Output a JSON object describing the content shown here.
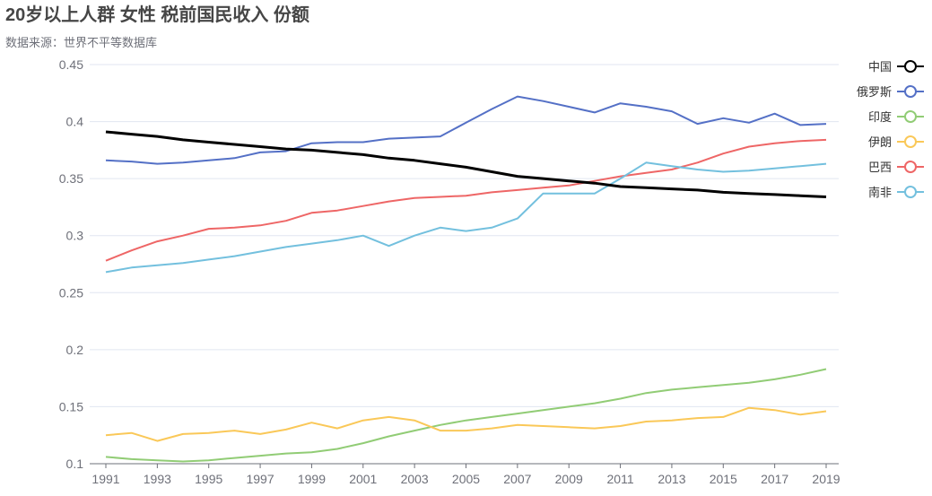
{
  "chart_data": {
    "type": "line",
    "title": "20岁以上人群 女性 税前国民收入 份额",
    "subtitle": "数据来源：世界不平等数据库",
    "xlabel": "",
    "ylabel": "",
    "ylim": [
      0.1,
      0.45
    ],
    "yticks": [
      "0.1",
      "0.15",
      "0.2",
      "0.25",
      "0.3",
      "0.35",
      "0.4",
      "0.45"
    ],
    "xlim": [
      1991,
      2019
    ],
    "xticks": [
      "1991",
      "1993",
      "1995",
      "1997",
      "1999",
      "2001",
      "2003",
      "2005",
      "2007",
      "2009",
      "2011",
      "2013",
      "2015",
      "2017",
      "2019"
    ],
    "grid": true,
    "legend_position": "right",
    "x": [
      1991,
      1992,
      1993,
      1994,
      1995,
      1996,
      1997,
      1998,
      1999,
      2000,
      2001,
      2002,
      2003,
      2004,
      2005,
      2006,
      2007,
      2008,
      2009,
      2010,
      2011,
      2012,
      2013,
      2014,
      2015,
      2016,
      2017,
      2018,
      2019
    ],
    "series": [
      {
        "name": "中国",
        "color": "#000000",
        "values": [
          0.391,
          0.389,
          0.387,
          0.384,
          0.382,
          0.38,
          0.378,
          0.376,
          0.375,
          0.373,
          0.371,
          0.368,
          0.366,
          0.363,
          0.36,
          0.356,
          0.352,
          0.35,
          0.348,
          0.346,
          0.343,
          0.342,
          0.341,
          0.34,
          0.338,
          0.337,
          0.336,
          0.335,
          0.334
        ]
      },
      {
        "name": "俄罗斯",
        "color": "#5470c6",
        "values": [
          0.366,
          0.365,
          0.363,
          0.364,
          0.366,
          0.368,
          0.373,
          0.374,
          0.381,
          0.382,
          0.382,
          0.385,
          0.386,
          0.387,
          0.399,
          0.411,
          0.422,
          0.418,
          0.413,
          0.408,
          0.416,
          0.413,
          0.409,
          0.398,
          0.403,
          0.399,
          0.407,
          0.397,
          0.398
        ]
      },
      {
        "name": "印度",
        "color": "#91cc75",
        "values": [
          0.106,
          0.104,
          0.103,
          0.102,
          0.103,
          0.105,
          0.107,
          0.109,
          0.11,
          0.113,
          0.118,
          0.124,
          0.129,
          0.134,
          0.138,
          0.141,
          0.144,
          0.147,
          0.15,
          0.153,
          0.157,
          0.162,
          0.165,
          0.167,
          0.169,
          0.171,
          0.174,
          0.178,
          0.183
        ]
      },
      {
        "name": "伊朗",
        "color": "#fac858",
        "values": [
          0.125,
          0.127,
          0.12,
          0.126,
          0.127,
          0.129,
          0.126,
          0.13,
          0.136,
          0.131,
          0.138,
          0.141,
          0.138,
          0.129,
          0.129,
          0.131,
          0.134,
          0.133,
          0.132,
          0.131,
          0.133,
          0.137,
          0.138,
          0.14,
          0.141,
          0.149,
          0.147,
          0.143,
          0.146
        ]
      },
      {
        "name": "巴西",
        "color": "#ee6666",
        "values": [
          0.278,
          0.287,
          0.295,
          0.3,
          0.306,
          0.307,
          0.309,
          0.313,
          0.32,
          0.322,
          0.326,
          0.33,
          0.333,
          0.334,
          0.335,
          0.338,
          0.34,
          0.342,
          0.344,
          0.348,
          0.352,
          0.355,
          0.358,
          0.364,
          0.372,
          0.378,
          0.381,
          0.383,
          0.384
        ]
      },
      {
        "name": "南非",
        "color": "#73c0de",
        "values": [
          0.268,
          0.272,
          0.274,
          0.276,
          0.279,
          0.282,
          0.286,
          0.29,
          0.293,
          0.296,
          0.3,
          0.291,
          0.3,
          0.307,
          0.304,
          0.307,
          0.315,
          0.337,
          0.337,
          0.337,
          0.35,
          0.364,
          0.361,
          0.358,
          0.356,
          0.357,
          0.359,
          0.361,
          0.363
        ]
      }
    ]
  }
}
